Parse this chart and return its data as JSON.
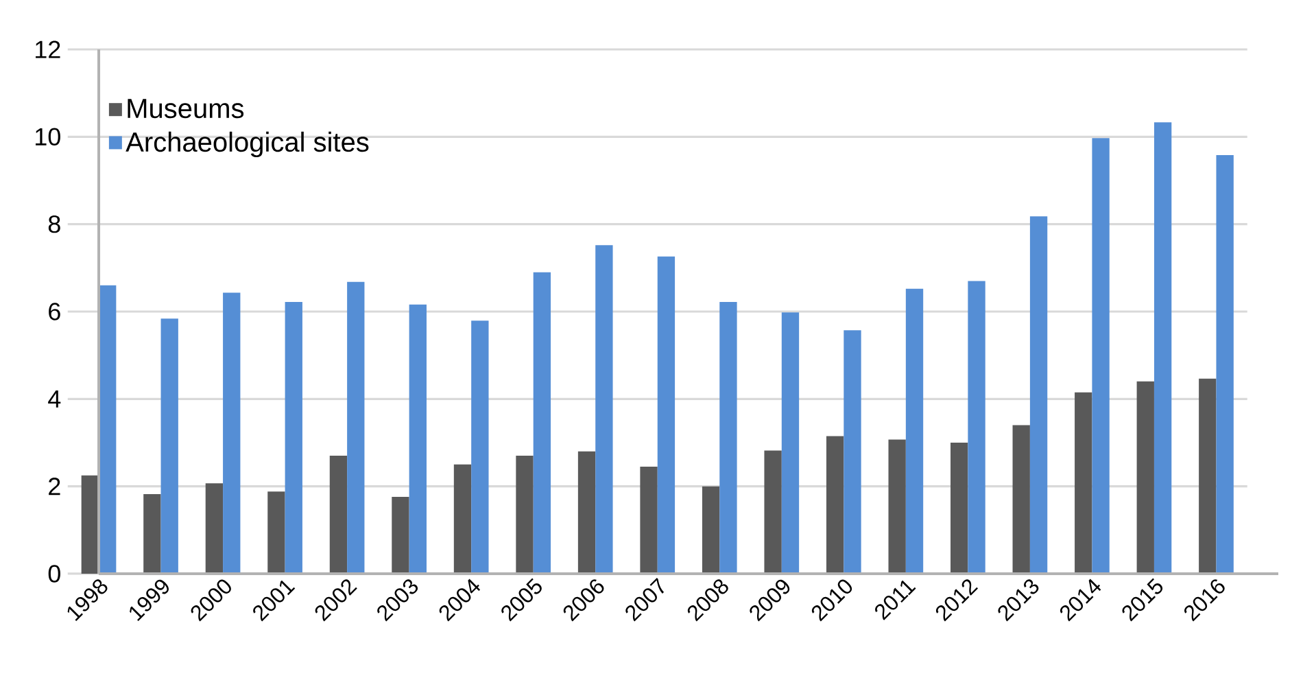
{
  "chart_data": {
    "type": "bar",
    "categories": [
      "1998",
      "1999",
      "2000",
      "2001",
      "2002",
      "2003",
      "2004",
      "2005",
      "2006",
      "2007",
      "2008",
      "2009",
      "2010",
      "2011",
      "2012",
      "2013",
      "2014",
      "2015",
      "2016"
    ],
    "series": [
      {
        "name": "Museums",
        "color": "#595959",
        "values": [
          2.25,
          1.82,
          2.07,
          1.88,
          2.7,
          1.76,
          2.5,
          2.7,
          2.8,
          2.45,
          2.0,
          2.82,
          3.15,
          3.07,
          3.0,
          3.4,
          4.15,
          4.4,
          4.47
        ]
      },
      {
        "name": "Archaeological sites",
        "color": "#558ed5",
        "values": [
          6.6,
          5.84,
          6.43,
          6.22,
          6.68,
          6.16,
          5.79,
          6.9,
          7.52,
          7.26,
          6.22,
          5.98,
          5.57,
          6.52,
          6.7,
          8.18,
          9.97,
          10.33,
          9.58
        ]
      }
    ],
    "ylim": [
      0,
      12
    ],
    "yticks": [
      0,
      2,
      4,
      6,
      8,
      10,
      12
    ],
    "grid": "y",
    "legend": "top left"
  }
}
